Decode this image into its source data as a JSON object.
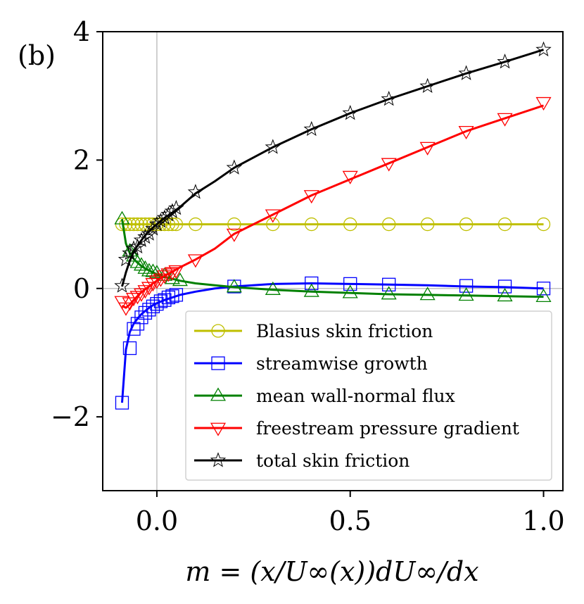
{
  "panel_label": "(b)",
  "chart_data": {
    "type": "line",
    "title": "",
    "xlabel": "m = (x/U∞(x))dU∞/dx",
    "ylabel": "",
    "xlim": [
      -0.14,
      1.05
    ],
    "ylim": [
      -3.15,
      4.0
    ],
    "xticks": [
      0.0,
      0.5,
      1.0
    ],
    "xtick_labels": [
      "0.0",
      "0.5",
      "1.0"
    ],
    "yticks": [
      -2,
      0,
      2,
      4
    ],
    "ytick_labels": [
      "−2",
      "0",
      "2",
      "4"
    ],
    "reference_lines": {
      "x": 0,
      "y": 0
    },
    "legend_position": "lower-right",
    "x_curve": [
      -0.09,
      -0.08,
      -0.07,
      -0.06,
      -0.05,
      -0.04,
      -0.03,
      -0.02,
      -0.01,
      0.0,
      0.02,
      0.04,
      0.06,
      0.1,
      0.15,
      0.2,
      0.3,
      0.4,
      0.5,
      0.6,
      0.7,
      0.8,
      0.9,
      1.0
    ],
    "x_markers": [
      -0.09,
      -0.08,
      -0.07,
      -0.06,
      -0.05,
      -0.04,
      -0.03,
      -0.02,
      -0.01,
      0.0,
      0.01,
      0.02,
      0.03,
      0.04,
      0.05,
      0.1,
      0.2,
      0.3,
      0.4,
      0.5,
      0.6,
      0.7,
      0.8,
      0.9,
      1.0
    ],
    "series": [
      {
        "name": "Blasius skin friction",
        "color": "#bfbf00",
        "marker": "circle",
        "curve": [
          1,
          1,
          1,
          1,
          1,
          1,
          1,
          1,
          1,
          1,
          1,
          1,
          1,
          1,
          1,
          1,
          1,
          1,
          1,
          1,
          1,
          1,
          1,
          1
        ],
        "marker_x": [
          -0.09,
          -0.08,
          -0.07,
          -0.06,
          -0.05,
          -0.04,
          -0.03,
          -0.02,
          -0.01,
          0.0,
          0.01,
          0.02,
          0.03,
          0.04,
          0.05,
          0.1,
          0.2,
          0.3,
          0.4,
          0.5,
          0.6,
          0.7,
          0.8,
          0.9,
          1.0
        ],
        "marker_y": [
          1,
          1,
          1,
          1,
          1,
          1,
          1,
          1,
          1,
          1,
          1,
          1,
          1,
          1,
          1,
          1,
          1,
          1,
          1,
          1,
          1,
          1,
          1,
          1,
          1
        ]
      },
      {
        "name": "streamwise growth",
        "color": "#0000ff",
        "marker": "square",
        "curve": [
          -1.78,
          -0.95,
          -0.68,
          -0.55,
          -0.47,
          -0.4,
          -0.35,
          -0.3,
          -0.26,
          -0.23,
          -0.18,
          -0.14,
          -0.1,
          -0.05,
          0.0,
          0.03,
          0.07,
          0.08,
          0.07,
          0.06,
          0.05,
          0.03,
          0.02,
          0.0
        ],
        "marker_x": [
          -0.09,
          -0.07,
          -0.06,
          -0.05,
          -0.04,
          -0.03,
          -0.02,
          -0.01,
          0.0,
          0.01,
          0.02,
          0.03,
          0.04,
          0.05,
          0.2,
          0.4,
          0.5,
          0.6,
          0.8,
          0.9,
          1.0
        ],
        "marker_y": [
          -1.78,
          -0.93,
          -0.63,
          -0.55,
          -0.45,
          -0.38,
          -0.33,
          -0.28,
          -0.24,
          -0.2,
          -0.18,
          -0.14,
          -0.12,
          -0.1,
          0.03,
          0.08,
          0.07,
          0.06,
          0.04,
          0.03,
          0.0
        ]
      },
      {
        "name": "mean wall-normal flux",
        "color": "#008000",
        "marker": "triangle-up",
        "curve": [
          1.08,
          0.7,
          0.55,
          0.46,
          0.4,
          0.35,
          0.31,
          0.28,
          0.25,
          0.22,
          0.18,
          0.15,
          0.12,
          0.08,
          0.05,
          0.02,
          -0.02,
          -0.05,
          -0.07,
          -0.09,
          -0.1,
          -0.11,
          -0.12,
          -0.13
        ],
        "marker_x": [
          -0.09,
          -0.07,
          -0.06,
          -0.05,
          -0.04,
          -0.03,
          -0.02,
          -0.01,
          0.0,
          0.02,
          0.04,
          0.06,
          0.2,
          0.3,
          0.4,
          0.5,
          0.6,
          0.7,
          0.8,
          0.9,
          1.0
        ],
        "marker_y": [
          1.08,
          0.58,
          0.5,
          0.4,
          0.36,
          0.31,
          0.27,
          0.26,
          0.24,
          0.2,
          0.15,
          0.12,
          0.02,
          -0.02,
          -0.05,
          -0.07,
          -0.09,
          -0.1,
          -0.11,
          -0.12,
          -0.13
        ]
      },
      {
        "name": "freestream pressure gradient",
        "color": "#ff0000",
        "marker": "triangle-down",
        "curve": [
          -0.27,
          -0.3,
          -0.25,
          -0.18,
          -0.12,
          -0.06,
          -0.01,
          0.03,
          0.08,
          0.12,
          0.2,
          0.26,
          0.33,
          0.45,
          0.62,
          0.85,
          1.15,
          1.45,
          1.7,
          1.95,
          2.2,
          2.45,
          2.65,
          2.85
        ],
        "marker_x": [
          -0.09,
          -0.08,
          -0.07,
          -0.06,
          -0.05,
          -0.04,
          -0.03,
          -0.02,
          -0.01,
          0.0,
          0.01,
          0.02,
          0.03,
          0.04,
          0.05,
          0.1,
          0.2,
          0.3,
          0.4,
          0.5,
          0.6,
          0.7,
          0.8,
          0.9,
          1.0
        ],
        "marker_y": [
          -0.2,
          -0.3,
          -0.22,
          -0.15,
          -0.12,
          -0.08,
          -0.03,
          0.02,
          0.08,
          0.12,
          0.15,
          0.2,
          0.23,
          0.25,
          0.28,
          0.45,
          0.85,
          1.15,
          1.45,
          1.75,
          1.95,
          2.2,
          2.45,
          2.65,
          2.9
        ]
      },
      {
        "name": "total skin friction",
        "color": "#000000",
        "marker": "star",
        "curve": [
          0.03,
          0.25,
          0.43,
          0.57,
          0.67,
          0.75,
          0.83,
          0.89,
          0.95,
          1.0,
          1.1,
          1.18,
          1.27,
          1.48,
          1.67,
          1.88,
          2.2,
          2.48,
          2.73,
          2.95,
          3.15,
          3.35,
          3.53,
          3.72
        ],
        "marker_x": [
          -0.09,
          -0.08,
          -0.07,
          -0.06,
          -0.05,
          -0.04,
          -0.03,
          -0.02,
          -0.01,
          0.0,
          0.01,
          0.02,
          0.03,
          0.04,
          0.05,
          0.1,
          0.2,
          0.3,
          0.4,
          0.5,
          0.6,
          0.7,
          0.8,
          0.9,
          1.0
        ],
        "marker_y": [
          0.04,
          0.45,
          0.55,
          0.62,
          0.65,
          0.75,
          0.8,
          0.85,
          0.93,
          1.0,
          1.05,
          1.1,
          1.15,
          1.2,
          1.25,
          1.5,
          1.88,
          2.2,
          2.48,
          2.73,
          2.95,
          3.15,
          3.35,
          3.53,
          3.72
        ]
      }
    ]
  }
}
